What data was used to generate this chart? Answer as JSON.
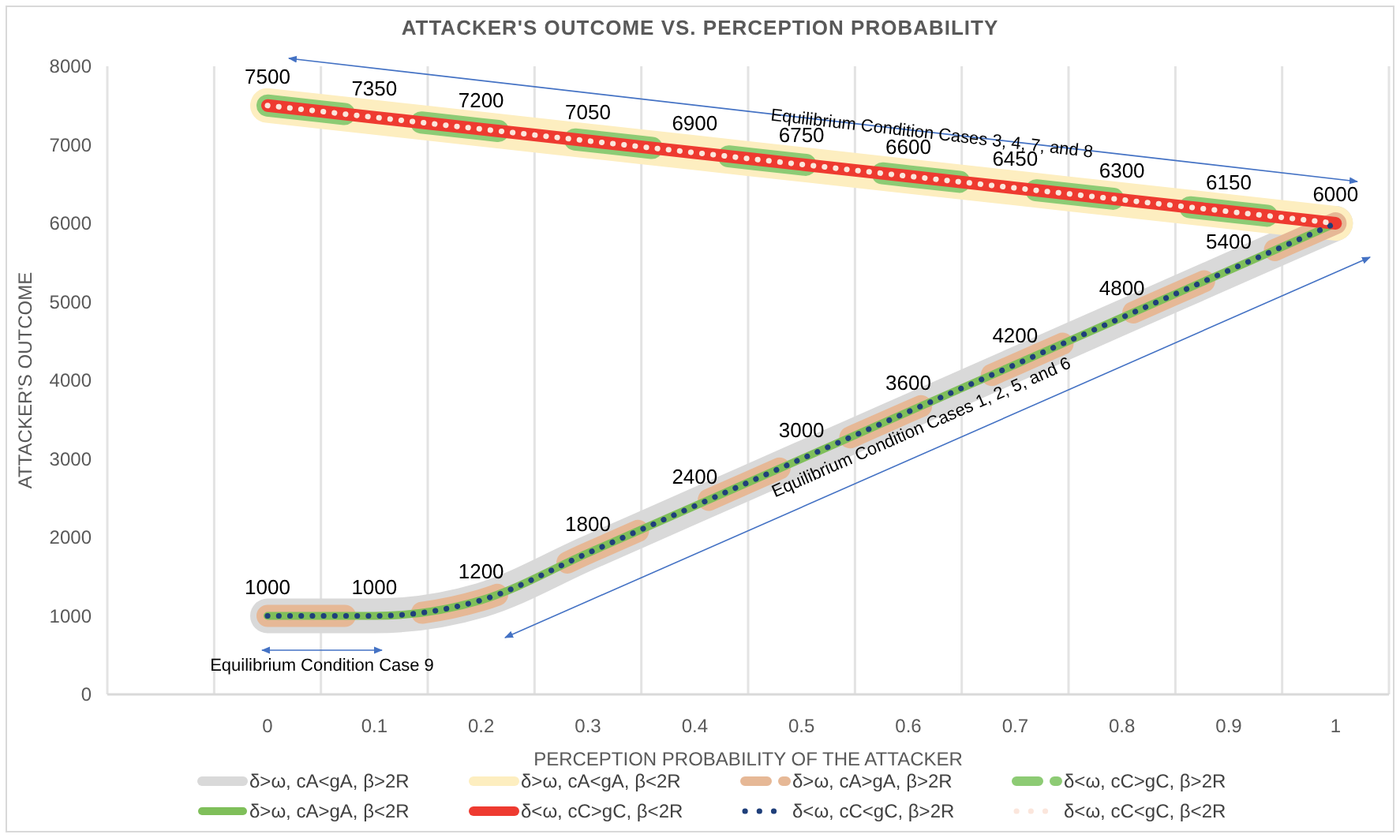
{
  "chart_data": {
    "type": "line",
    "title": "ATTACKER'S OUTCOME VS. PERCEPTION PROBABILITY",
    "xlabel": "PERCEPTION PROBABILITY OF THE ATTACKER",
    "ylabel": "ATTACKER'S OUTCOME",
    "categories": [
      null,
      "0",
      "0.1",
      "0.2",
      "0.3",
      "0.4",
      "0.5",
      "0.6",
      "0.7",
      "0.8",
      "0.9",
      "1"
    ],
    "ylim": [
      0,
      8000
    ],
    "yticks": [
      0,
      1000,
      2000,
      3000,
      4000,
      5000,
      6000,
      7000,
      8000
    ],
    "grid": "x",
    "legend": "bottom",
    "marker": "none",
    "series": [
      {
        "name": "δ>ω, cA<gA, β>2R",
        "color": "#d9d9d9",
        "line_style": "solid",
        "values": [
          null,
          1000,
          1000,
          1200,
          1800,
          2400,
          3000,
          3600,
          4200,
          4800,
          5400,
          6000
        ]
      },
      {
        "name": "δ>ω, cA<gA, β<2R",
        "color": "#fdeec0",
        "line_style": "solid",
        "values": [
          null,
          7500,
          7350,
          7200,
          7050,
          6900,
          6750,
          6600,
          6450,
          6300,
          6150,
          6000
        ]
      },
      {
        "name": "δ>ω, cA>gA, β>2R",
        "color": "#e6b896",
        "line_style": "dashed",
        "values": [
          null,
          1000,
          1000,
          1200,
          1800,
          2400,
          3000,
          3600,
          4200,
          4800,
          5400,
          6000
        ]
      },
      {
        "name": "δ<ω, cC>gC, β>2R",
        "color": "#8dcb74",
        "line_style": "dashed",
        "values": [
          null,
          7500,
          7350,
          7200,
          7050,
          6900,
          6750,
          6600,
          6450,
          6300,
          6150,
          6000
        ]
      },
      {
        "name": "δ>ω, cA>gA, β<2R",
        "color": "#7fbf5a",
        "line_style": "solid",
        "values": [
          null,
          1000,
          1000,
          1200,
          1800,
          2400,
          3000,
          3600,
          4200,
          4800,
          5400,
          6000
        ]
      },
      {
        "name": "δ<ω, cC>gC, β<2R",
        "color": "#ee3a30",
        "line_style": "solid",
        "values": [
          null,
          7500,
          7350,
          7200,
          7050,
          6900,
          6750,
          6600,
          6450,
          6300,
          6150,
          6000
        ],
        "value_labels": [
          null,
          "7500",
          "7350",
          "7200",
          "7050",
          "6900",
          "6750",
          "6600",
          "6450",
          "6300",
          "6150",
          "6000"
        ]
      },
      {
        "name": "δ<ω, cC<gC, β>2R",
        "color": "#1f3f7a",
        "line_style": "dotted",
        "values": [
          null,
          1000,
          1000,
          1200,
          1800,
          2400,
          3000,
          3600,
          4200,
          4800,
          5400,
          6000
        ],
        "value_labels": [
          null,
          "1000",
          "1000",
          "1200",
          "1800",
          "2400",
          "3000",
          "3600",
          "4200",
          "4800",
          "5400",
          null
        ]
      },
      {
        "name": "δ<ω, cC<gC, β<2R",
        "color": "#fbe6dc",
        "line_style": "dotted",
        "values": [
          null,
          7500,
          7350,
          7200,
          7050,
          6900,
          6750,
          6600,
          6450,
          6300,
          6150,
          6000
        ]
      }
    ],
    "annotations": [
      "Equilibrium Condition Cases 3, 4, 7, and 8",
      "Equilibrium Condition Cases 1, 2, 5, and 6",
      "Equilibrium Condition Case 9"
    ]
  }
}
